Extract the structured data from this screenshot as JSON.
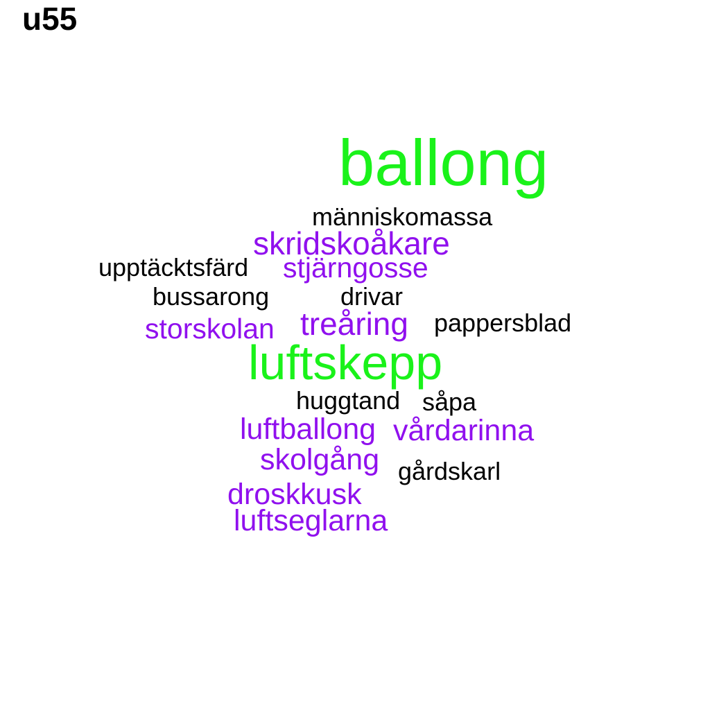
{
  "title": "u55",
  "colors": {
    "background": "#ffffff",
    "black": "#000000",
    "purple": "#9010EE",
    "green": "#1AF21A"
  },
  "words": {
    "ballong": "ballong",
    "manniskomassa": "människomassa",
    "skridskoakare": "skridskoåkare",
    "upptacktsfard": "upptäcktsfärd",
    "stjarngosse": "stjärngosse",
    "bussarong": "bussarong",
    "drivar": "drivar",
    "trearing": "treåring",
    "pappersblad": "pappersblad",
    "storskolan": "storskolan",
    "luftskepp": "luftskepp",
    "huggtand": "huggtand",
    "sapa": "såpa",
    "luftballong": "luftballong",
    "vardarinna": "vårdarinna",
    "skolgang": "skolgång",
    "gardskarl": "gårdskarl",
    "droskkusk": "droskkusk",
    "luftseglarna": "luftseglarna"
  }
}
